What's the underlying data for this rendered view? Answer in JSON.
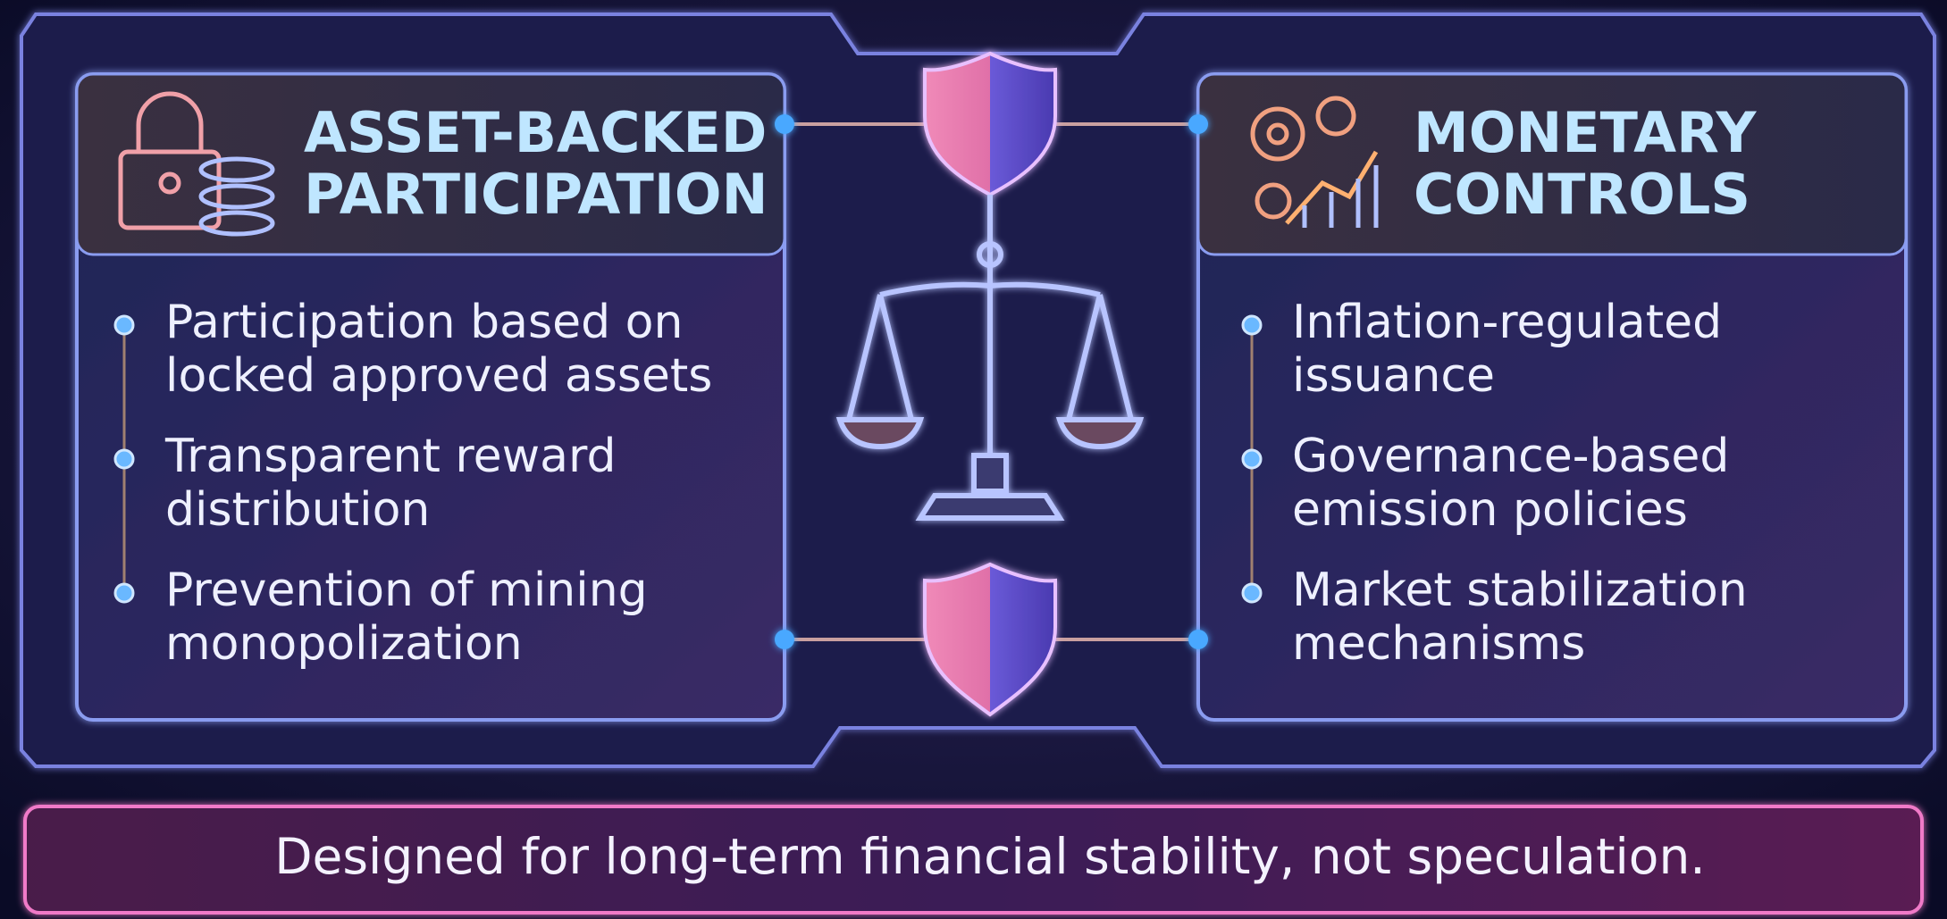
{
  "panels": [
    {
      "title": [
        "ASSET-BACKED",
        "PARTICIPATION"
      ],
      "items": [
        [
          "Participation based on",
          "locked approved assets"
        ],
        [
          "Transparent reward",
          "distribution"
        ],
        [
          "Prevention of mining",
          "monopolization"
        ]
      ]
    },
    {
      "title": [
        "MONETARY",
        "CONTROLS"
      ],
      "items": [
        [
          "Inflation-regulated",
          "issuance"
        ],
        [
          "Governance-based",
          "emission policies"
        ],
        [
          "Market stabilization",
          "mechanisms"
        ]
      ]
    }
  ],
  "footer": "Designed for long-term financial stability, not speculation."
}
